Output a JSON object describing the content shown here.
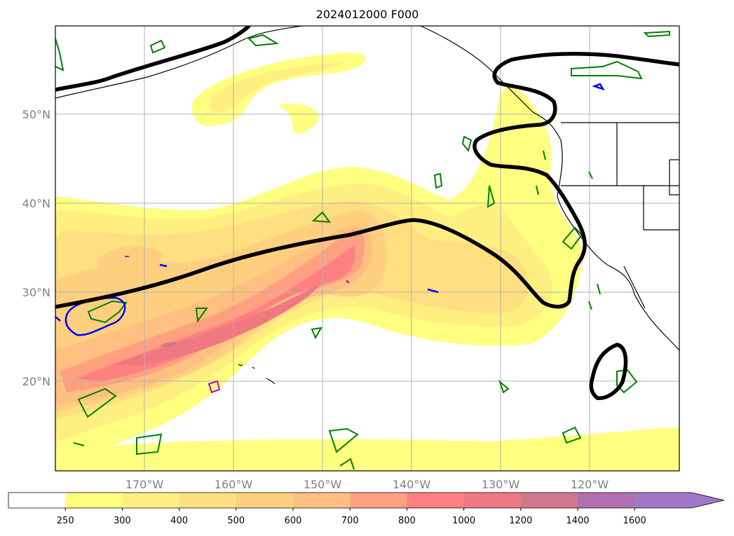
{
  "title": "2024012000 F000",
  "map": {
    "lon_labels": [
      "170°W",
      "160°W",
      "150°W",
      "140°W",
      "130°W",
      "120°W"
    ],
    "lat_labels": [
      "50°N",
      "40°N",
      "30°N",
      "20°N"
    ],
    "fill_field_colors": [
      "#ffffff",
      "#ffff80",
      "#ffef80",
      "#ffdf80",
      "#ffcf80",
      "#ffbf80",
      "#ffa080",
      "#ff8080",
      "#f07880",
      "#d07890",
      "#b070b0",
      "#a078c8"
    ],
    "contour_colors": {
      "jet": "#000000",
      "green": "#008000",
      "blue": "#0000ff",
      "magenta": "#c000c0"
    }
  },
  "colorbar": {
    "ticks": [
      "250",
      "300",
      "400",
      "500",
      "600",
      "700",
      "800",
      "1000",
      "1200",
      "1400",
      "1600"
    ],
    "extend": "max",
    "colors": [
      "#ffffff",
      "#ffff80",
      "#ffef80",
      "#ffdf80",
      "#ffcf80",
      "#ffbf80",
      "#ffa080",
      "#ff8080",
      "#f07880",
      "#d07890",
      "#b070b0",
      "#a078c8"
    ]
  }
}
